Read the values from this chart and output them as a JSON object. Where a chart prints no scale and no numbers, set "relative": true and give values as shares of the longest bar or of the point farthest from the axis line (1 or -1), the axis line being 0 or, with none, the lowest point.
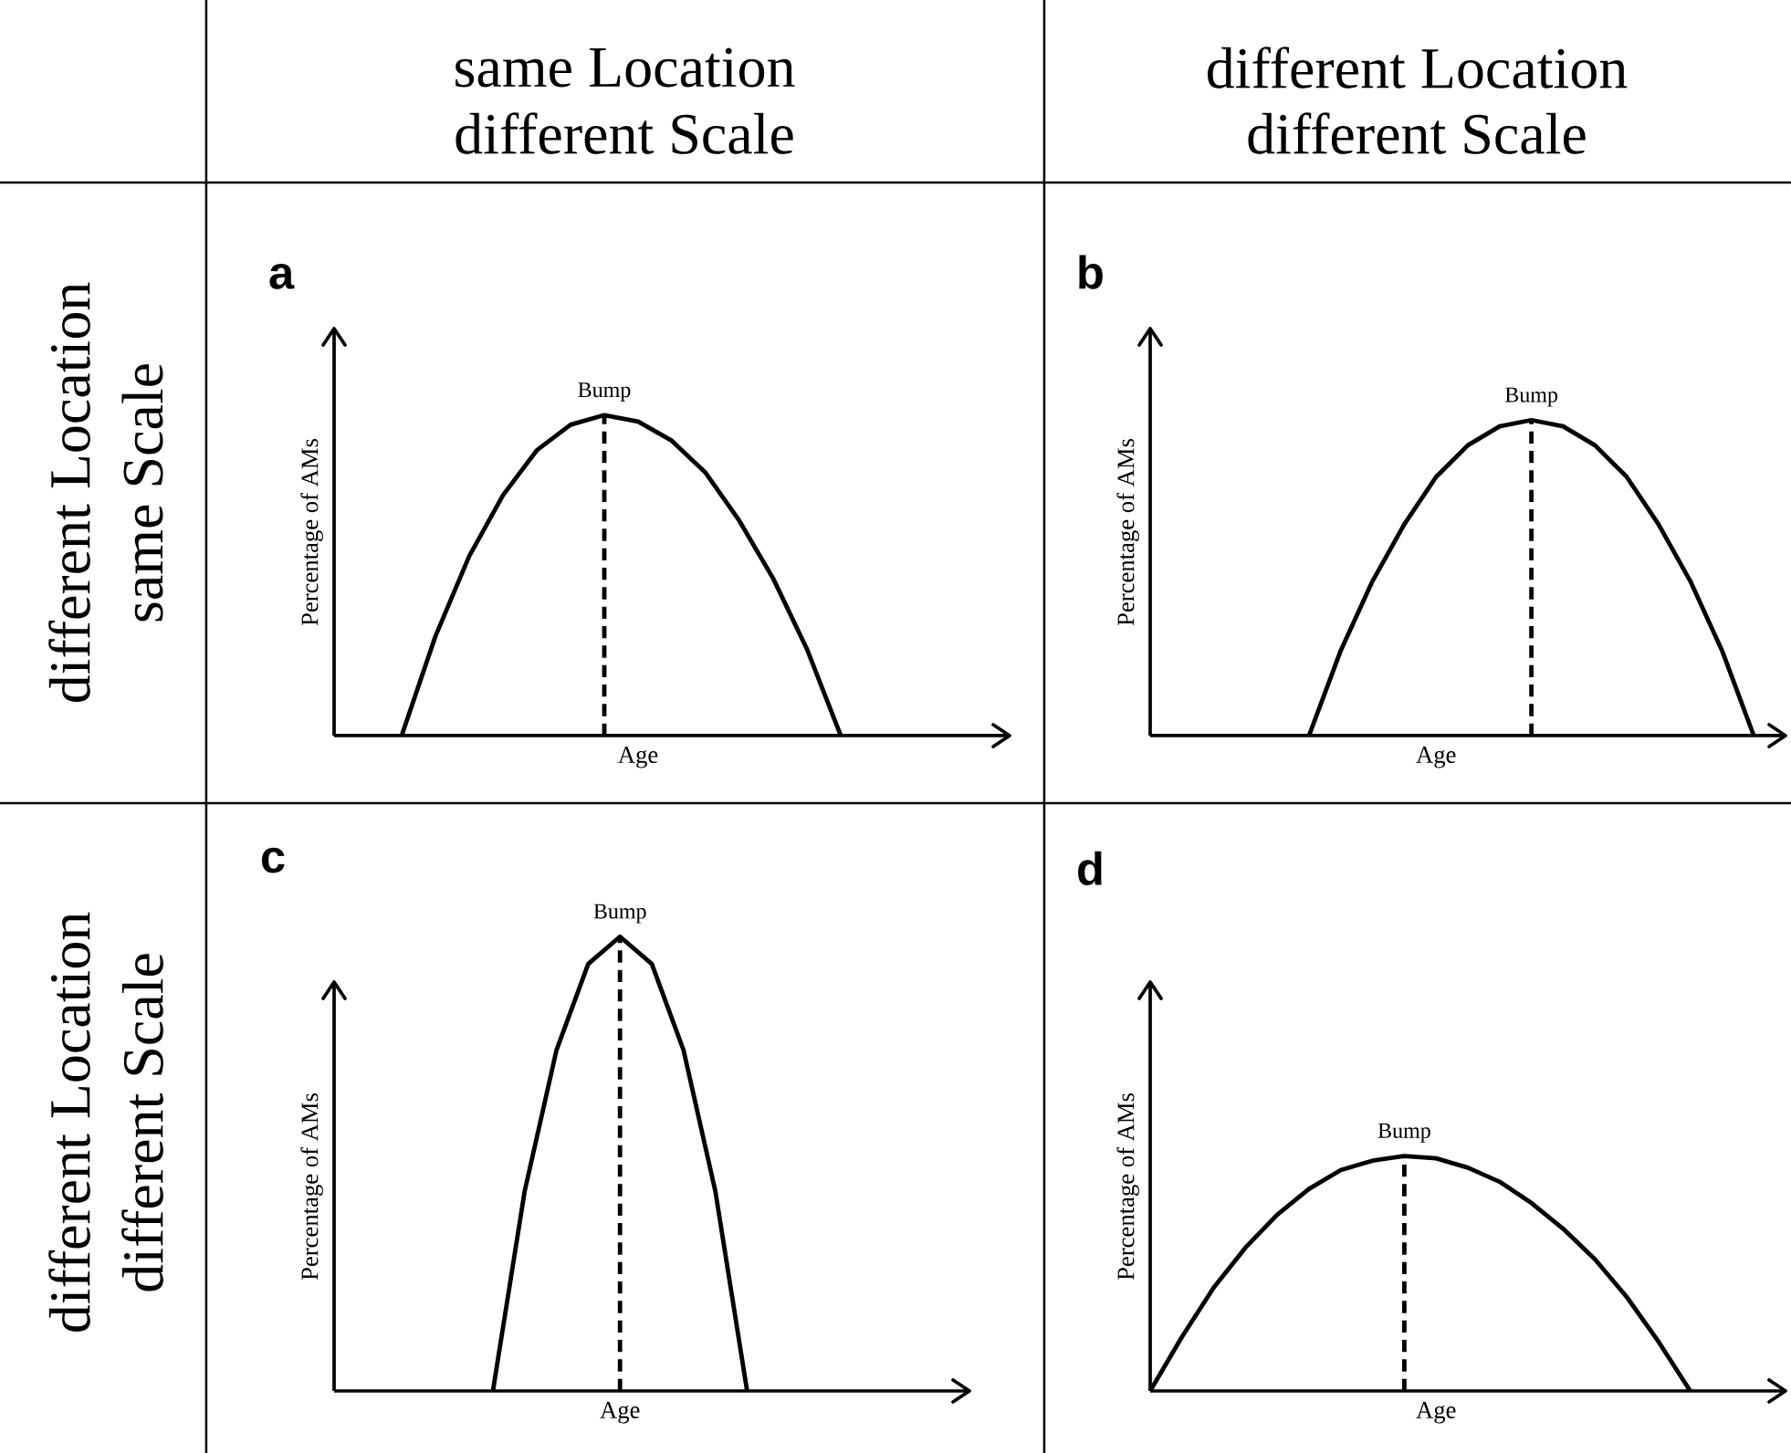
{
  "chart_data": [
    {
      "type": "other",
      "annotations": [
        "same Location",
        "different Scale",
        "different Location",
        "different Scale",
        "different Location",
        "same Scale",
        "different Location",
        "different Scale"
      ]
    },
    {
      "type": "line",
      "title": "a",
      "xlabel": "Age",
      "ylabel": "Percentage of AMs",
      "relative": true,
      "marker": "none",
      "line_style": "solid",
      "categories": [
        null,
        null,
        null,
        null,
        null,
        null,
        null,
        null,
        null,
        null,
        null,
        null,
        null,
        null,
        null,
        null,
        null,
        null,
        null,
        null,
        null
      ],
      "series": [
        {
          "color": "#000000",
          "values": [
            null,
            null,
            0,
            0.31,
            0.56,
            0.75,
            0.89,
            0.97,
            1,
            0.98,
            0.92,
            0.82,
            0.67,
            0.49,
            0.27,
            0,
            null,
            null,
            null,
            null,
            null
          ]
        }
      ],
      "annotations": [
        "Bump"
      ]
    },
    {
      "type": "line",
      "title": "b",
      "xlabel": "Age",
      "ylabel": "Percentage of AMs",
      "relative": true,
      "marker": "none",
      "line_style": "solid",
      "categories": [
        null,
        null,
        null,
        null,
        null,
        null,
        null,
        null,
        null,
        null,
        null,
        null,
        null,
        null,
        null,
        null,
        null,
        null,
        null,
        null,
        null
      ],
      "series": [
        {
          "color": "#000000",
          "values": [
            null,
            null,
            null,
            null,
            null,
            0,
            0.27,
            0.49,
            0.67,
            0.82,
            0.92,
            0.98,
            1,
            0.98,
            0.92,
            0.82,
            0.67,
            0.49,
            0.27,
            0,
            null
          ]
        }
      ],
      "annotations": [
        "Bump"
      ]
    },
    {
      "type": "line",
      "title": "c",
      "xlabel": "Age",
      "ylabel": "Percentage of AMs",
      "relative": true,
      "marker": "none",
      "line_style": "solid",
      "categories": [
        null,
        null,
        null,
        null,
        null,
        null,
        null,
        null,
        null,
        null,
        null,
        null,
        null,
        null,
        null,
        null,
        null,
        null,
        null,
        null,
        null
      ],
      "series": [
        {
          "color": "#000000",
          "values": [
            null,
            null,
            null,
            null,
            null,
            0,
            0.44,
            0.75,
            0.94,
            1,
            0.94,
            0.75,
            0.44,
            0,
            null,
            null,
            null,
            null,
            null,
            null,
            null
          ]
        }
      ],
      "annotations": [
        "Bump"
      ]
    },
    {
      "type": "line",
      "title": "d",
      "xlabel": "Age",
      "ylabel": "Percentage of AMs",
      "relative": true,
      "marker": "none",
      "line_style": "solid",
      "categories": [
        null,
        null,
        null,
        null,
        null,
        null,
        null,
        null,
        null,
        null,
        null,
        null,
        null,
        null,
        null,
        null,
        null,
        null,
        null,
        null,
        null
      ],
      "series": [
        {
          "color": "#000000",
          "values": [
            0,
            0.23,
            0.44,
            0.61,
            0.75,
            0.86,
            0.94,
            0.98,
            1,
            0.99,
            0.95,
            0.89,
            0.8,
            0.69,
            0.56,
            0.4,
            0.21,
            0,
            null,
            null,
            null
          ]
        }
      ],
      "annotations": [
        "Bump"
      ]
    }
  ]
}
